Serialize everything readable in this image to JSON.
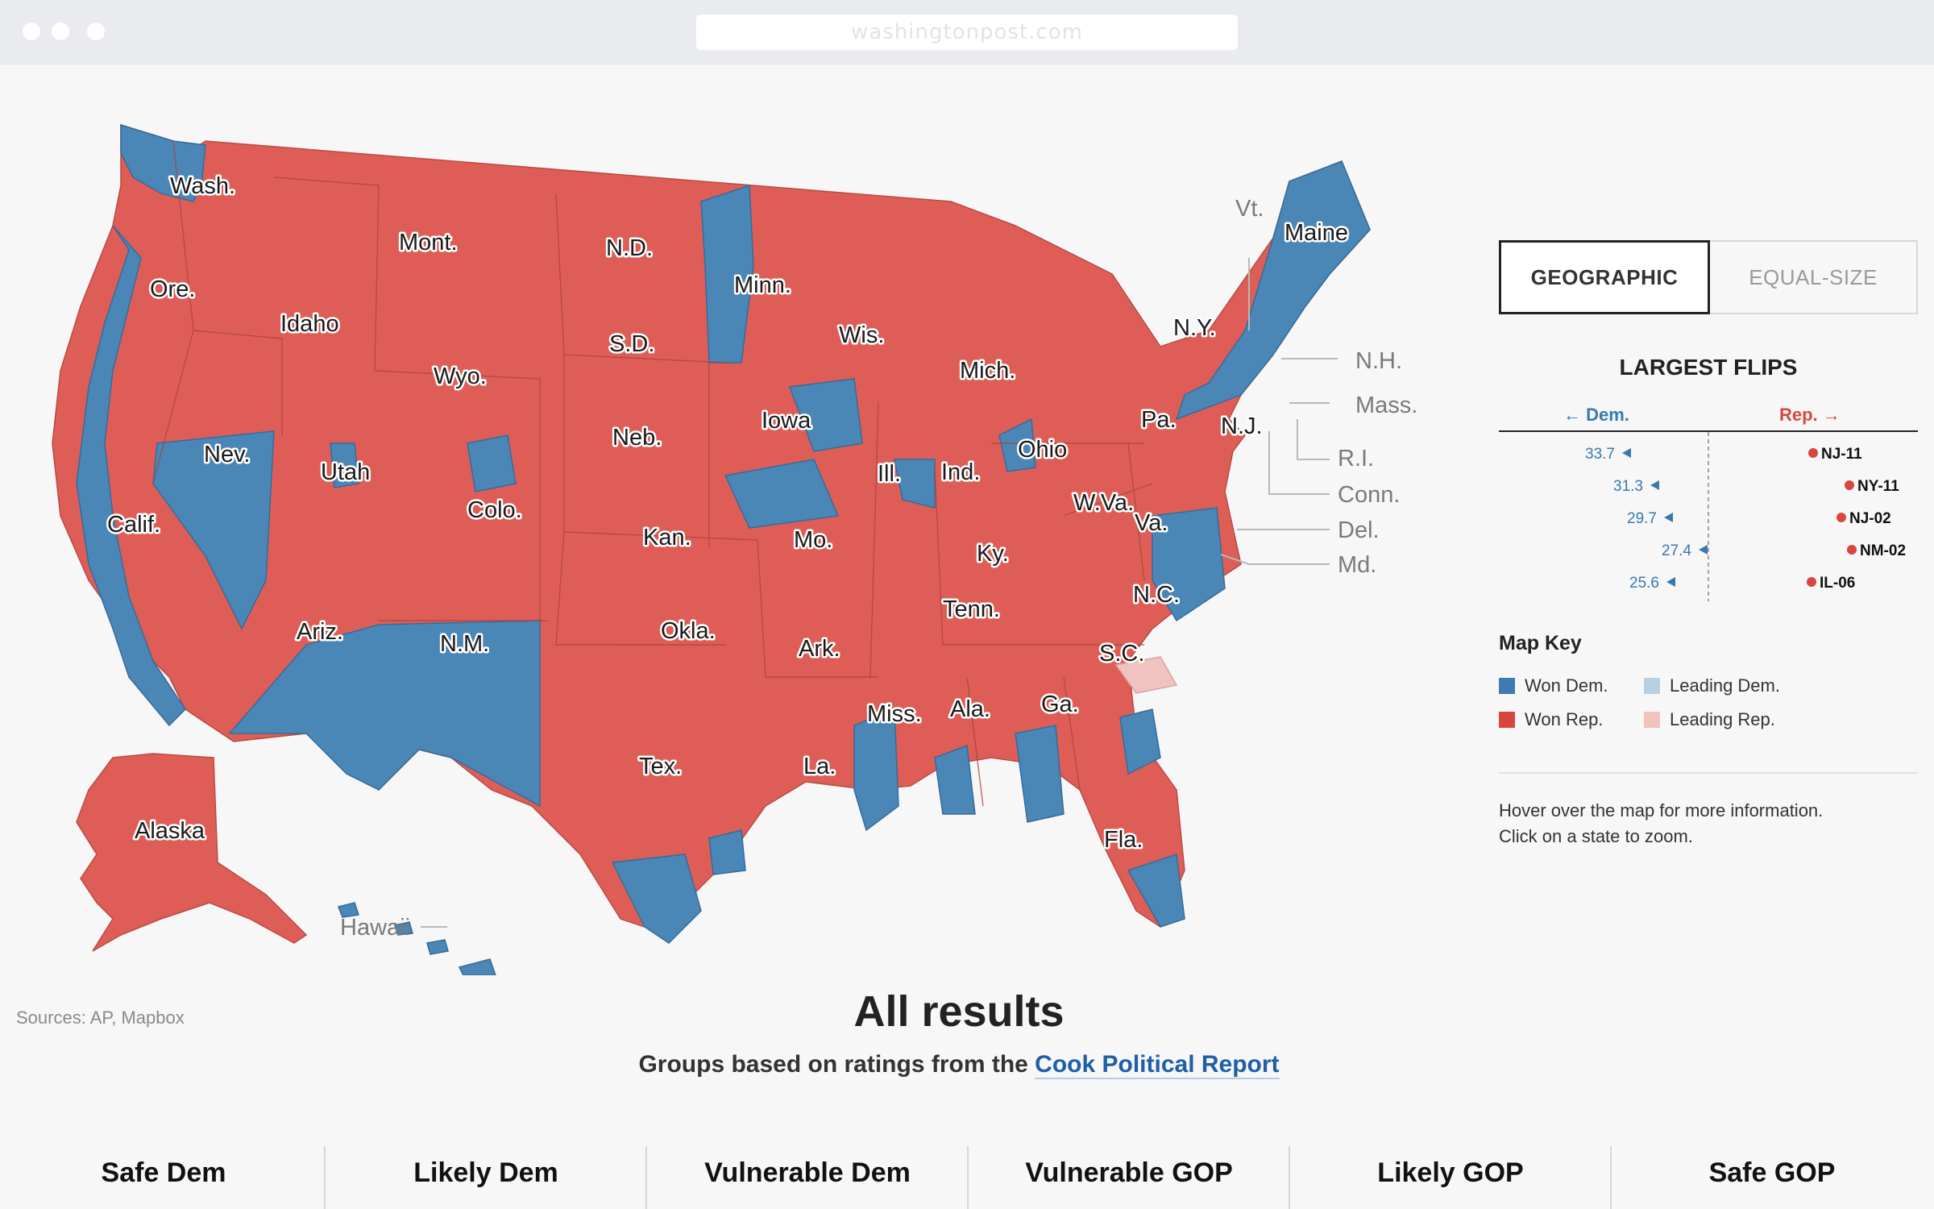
{
  "browser": {
    "url": "washingtonpost.com"
  },
  "map": {
    "colors": {
      "won_dem": "#4a86b6",
      "won_rep": "#de5e57",
      "leading_dem": "#b7d1e3",
      "leading_rep": "#f0c3c1"
    },
    "state_labels": [
      "Wash.",
      "Ore.",
      "Calif.",
      "Nev.",
      "Idaho",
      "Mont.",
      "Wyo.",
      "Utah",
      "Colo.",
      "Ariz.",
      "N.M.",
      "N.D.",
      "S.D.",
      "Neb.",
      "Kan.",
      "Okla.",
      "Tex.",
      "Minn.",
      "Iowa",
      "Mo.",
      "Ark.",
      "La.",
      "Wis.",
      "Ill.",
      "Mich.",
      "Ind.",
      "Ohio",
      "Ky.",
      "Tenn.",
      "Miss.",
      "Ala.",
      "Ga.",
      "Fla.",
      "S.C.",
      "N.C.",
      "Va.",
      "W.Va.",
      "Pa.",
      "N.Y.",
      "N.J.",
      "Maine",
      "Alaska"
    ],
    "outside_labels": [
      "Vt.",
      "N.H.",
      "Mass.",
      "R.I.",
      "Conn.",
      "Del.",
      "Md.",
      "Hawaii"
    ],
    "sources": "Sources: AP, Mapbox"
  },
  "view_toggle": {
    "options": [
      "GEOGRAPHIC",
      "EQUAL-SIZE"
    ],
    "selected": "GEOGRAPHIC"
  },
  "largest_flips": {
    "title": "LARGEST FLIPS",
    "dem_label": "← Dem.",
    "rep_label": "Rep. →",
    "rows": [
      {
        "district": "NJ-11",
        "value": "33.7"
      },
      {
        "district": "NY-11",
        "value": "31.3"
      },
      {
        "district": "NJ-02",
        "value": "29.7"
      },
      {
        "district": "NM-02",
        "value": "27.4"
      },
      {
        "district": "IL-06",
        "value": "25.6"
      }
    ]
  },
  "map_key": {
    "title": "Map Key",
    "items": [
      "Won Dem.",
      "Won Rep.",
      "Leading Dem.",
      "Leading Rep."
    ]
  },
  "hint": {
    "line1": "Hover over the map for more information.",
    "line2": "Click on a state to zoom."
  },
  "results": {
    "title": "All results",
    "subtitle_prefix": "Groups based on ratings from the ",
    "subtitle_link": "Cook Political Report",
    "groups": [
      "Safe Dem",
      "Likely Dem",
      "Vulnerable Dem",
      "Vulnerable GOP",
      "Likely GOP",
      "Safe GOP"
    ]
  }
}
